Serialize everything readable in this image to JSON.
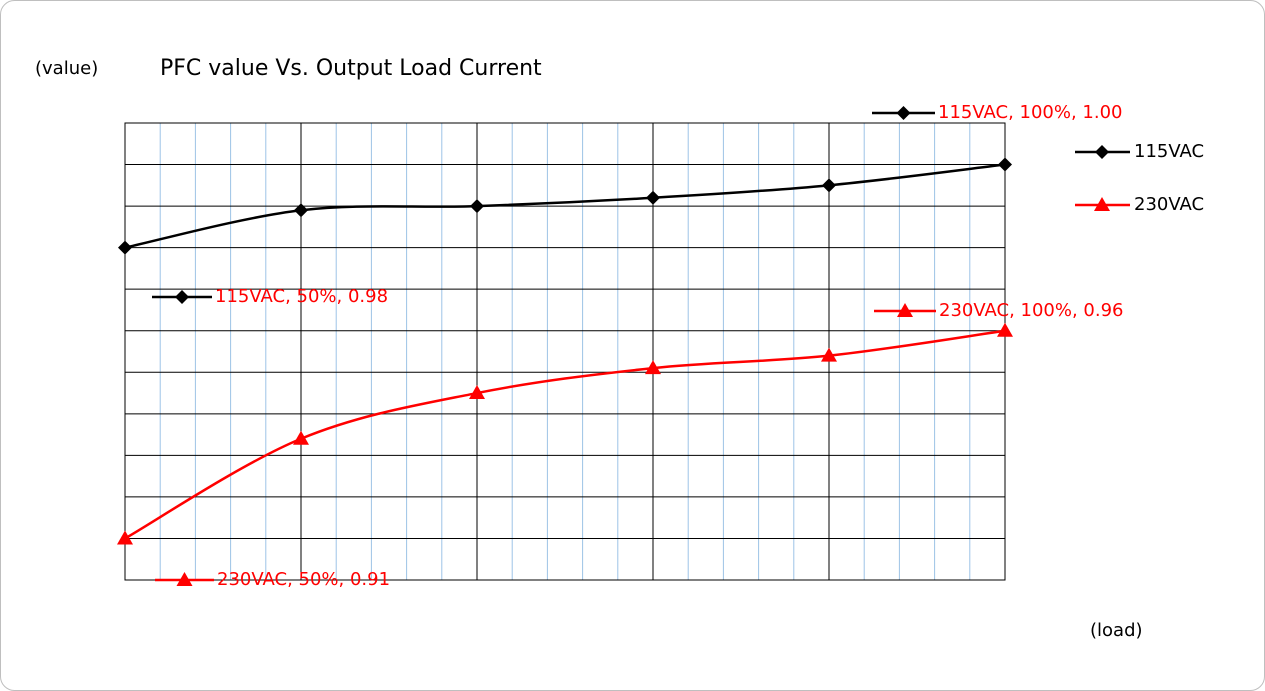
{
  "chart_data": {
    "type": "line",
    "title": "PFC value Vs. Output Load Current",
    "y_axis_label": "(value)",
    "x_axis_label": "(load)",
    "categories": [
      null,
      null,
      null,
      null,
      null,
      null
    ],
    "series": [
      {
        "name": "115VAC",
        "color": "#000000",
        "marker": "diamond",
        "values": [
          0.98,
          0.989,
          0.99,
          0.992,
          0.995,
          1.0
        ]
      },
      {
        "name": "230VAC",
        "color": "#ff0000",
        "marker": "triangle",
        "values": [
          0.91,
          0.934,
          0.945,
          0.951,
          0.954,
          0.96
        ]
      }
    ],
    "ylim": [
      0.9,
      1.01
    ],
    "yticks": [
      0.9,
      0.91,
      0.92,
      0.93,
      0.94,
      0.95,
      0.96,
      0.97,
      0.98,
      0.99,
      1.0,
      1.01
    ],
    "grid": true,
    "smooth": true,
    "legend": "right",
    "annotations": [
      "115VAC, 100%, 1.00",
      "115VAC, 50%, 0.98",
      "230VAC, 100%, 0.96",
      "230VAC, 50%, 0.91"
    ],
    "annotation_color": "#ff0000"
  }
}
